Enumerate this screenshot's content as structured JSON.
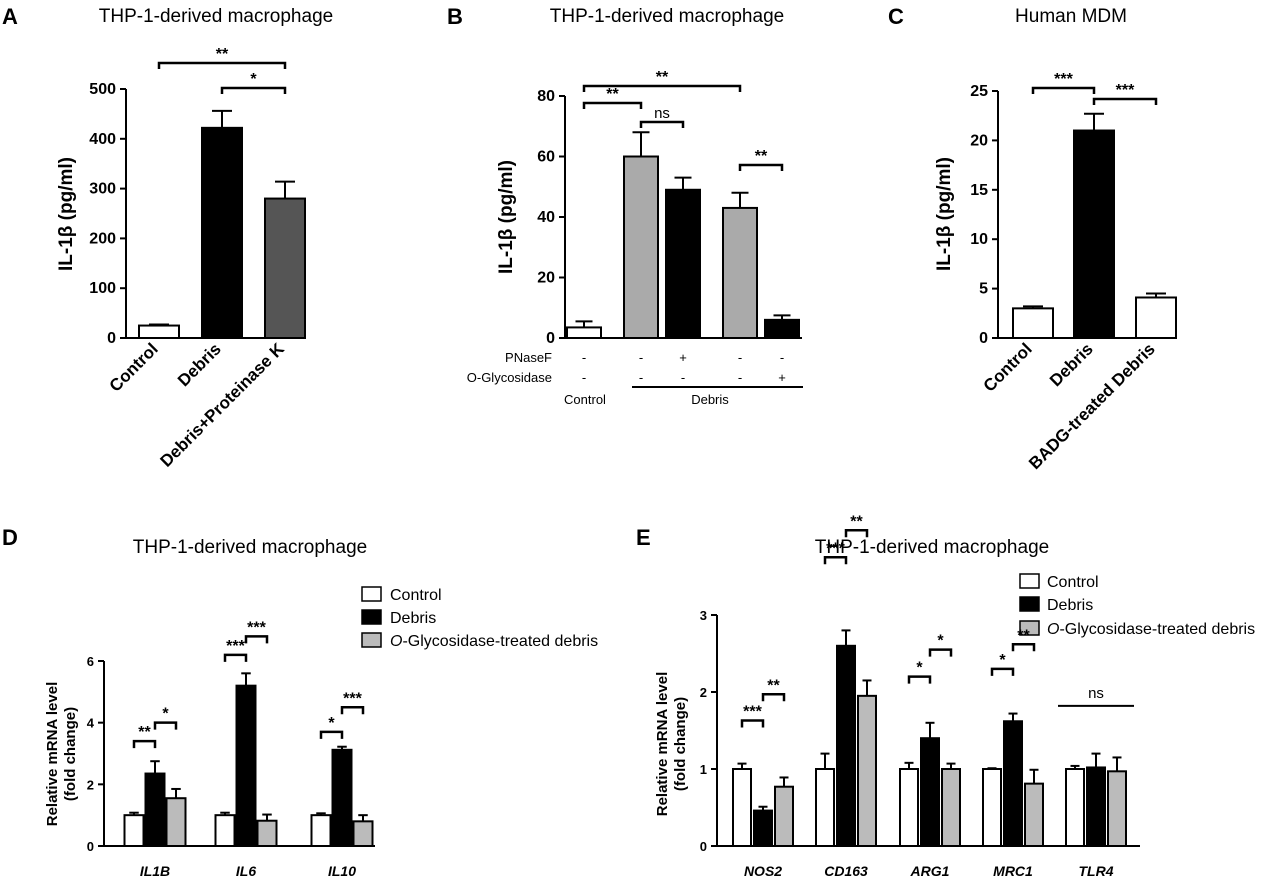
{
  "chart_data": [
    {
      "id": "A",
      "type": "bar",
      "panel_label": "A",
      "title": "THP-1-derived macrophage",
      "ylabel": "IL-1β (pg/ml)",
      "ylim": [
        0,
        500
      ],
      "yticks": [
        "0",
        "100",
        "200",
        "300",
        "400",
        "500"
      ],
      "categories": [
        "Control",
        "Debris",
        "Debris+Proteinase K"
      ],
      "values": [
        25,
        422,
        280
      ],
      "errors": [
        2,
        34,
        34
      ],
      "colors": [
        "#ffffff",
        "#000000",
        "#555555"
      ],
      "significance": [
        {
          "from": 0,
          "to": 2,
          "label": "**"
        },
        {
          "from": 1,
          "to": 2,
          "label": "*"
        }
      ]
    },
    {
      "id": "B",
      "type": "bar",
      "panel_label": "B",
      "title": "THP-1-derived macrophage",
      "ylabel": "IL-1β (pg/ml)",
      "ylim": [
        0,
        80
      ],
      "yticks": [
        "0",
        "20",
        "40",
        "60",
        "80"
      ],
      "values": [
        3.5,
        60,
        49,
        43,
        6
      ],
      "errors": [
        2,
        8,
        4,
        5,
        1.5
      ],
      "colors": [
        "#ffffff",
        "#aaaaaa",
        "#000000",
        "#aaaaaa",
        "#000000"
      ],
      "treatments": [
        {
          "name": "PNaseF",
          "marks": [
            "-",
            "-",
            "+",
            "-",
            "-"
          ]
        },
        {
          "name": "O-Glycosidase",
          "marks": [
            "-",
            "-",
            "-",
            "-",
            "+"
          ]
        }
      ],
      "group_labels": [
        "Control",
        "Debris"
      ],
      "significance": [
        {
          "from": 0,
          "to": 3,
          "label": "**"
        },
        {
          "from": 0,
          "to": 1,
          "label": "**"
        },
        {
          "from": 1,
          "to": 2,
          "label": "ns"
        },
        {
          "from": 3,
          "to": 4,
          "label": "**"
        }
      ]
    },
    {
      "id": "C",
      "type": "bar",
      "panel_label": "C",
      "title": "Human MDM",
      "ylabel": "IL-1β (pg/ml)",
      "ylim": [
        0,
        25
      ],
      "yticks": [
        "0",
        "5",
        "10",
        "15",
        "20",
        "25"
      ],
      "categories": [
        "Control",
        "Debris",
        "BADG-treated Debris"
      ],
      "values": [
        3.0,
        21.0,
        4.1
      ],
      "errors": [
        0.2,
        1.7,
        0.4
      ],
      "colors": [
        "#ffffff",
        "#000000",
        "#ffffff"
      ],
      "significance": [
        {
          "from": 0,
          "to": 1,
          "label": "***"
        },
        {
          "from": 1,
          "to": 2,
          "label": "***"
        }
      ]
    },
    {
      "id": "D",
      "type": "bar",
      "panel_label": "D",
      "title": "THP-1-derived macrophage",
      "ylabel_lines": [
        "Relative mRNA level",
        "(fold change)"
      ],
      "ylim": [
        0,
        6
      ],
      "yticks": [
        "0",
        "2",
        "4",
        "6"
      ],
      "categories": [
        "IL1B",
        "IL6",
        "IL10"
      ],
      "legend_prefix": [
        "",
        "",
        "O"
      ],
      "legend_rest": [
        "Control",
        "Debris",
        "-Glycosidase-treated debris"
      ],
      "series": [
        {
          "name": "Control",
          "values": [
            1.0,
            1.0,
            1.0
          ],
          "errors": [
            0.08,
            0.08,
            0.06
          ],
          "color": "#ffffff"
        },
        {
          "name": "Debris",
          "values": [
            2.35,
            5.2,
            3.12
          ],
          "errors": [
            0.4,
            0.4,
            0.1
          ],
          "color": "#000000"
        },
        {
          "name": "O-Glycosidase-treated debris",
          "values": [
            1.55,
            0.82,
            0.8
          ],
          "errors": [
            0.3,
            0.2,
            0.2
          ],
          "color": "#bbbbbb"
        }
      ],
      "significance": [
        {
          "cat": 0,
          "from": 0,
          "to": 1,
          "label": "**",
          "level": 3.4
        },
        {
          "cat": 0,
          "from": 1,
          "to": 2,
          "label": "*",
          "level": 4.0
        },
        {
          "cat": 1,
          "from": 0,
          "to": 1,
          "label": "***",
          "level": 6.2
        },
        {
          "cat": 1,
          "from": 1,
          "to": 2,
          "label": "***",
          "level": 6.8
        },
        {
          "cat": 2,
          "from": 0,
          "to": 1,
          "label": "*",
          "level": 3.7
        },
        {
          "cat": 2,
          "from": 1,
          "to": 2,
          "label": "***",
          "level": 4.5
        }
      ]
    },
    {
      "id": "E",
      "type": "bar",
      "panel_label": "E",
      "title": "THP-1-derived macrophage",
      "ylabel_lines": [
        "Relative mRNA level",
        "(fold change)"
      ],
      "ylim": [
        0,
        3
      ],
      "yticks": [
        "0",
        "1",
        "2",
        "3"
      ],
      "categories": [
        "NOS2",
        "CD163",
        "ARG1",
        "MRC1",
        "TLR4"
      ],
      "legend_prefix": [
        "",
        "",
        "O"
      ],
      "legend_rest": [
        "Control",
        "Debris",
        "-Glycosidase-treated debris"
      ],
      "series": [
        {
          "name": "Control",
          "values": [
            1.0,
            1.0,
            1.0,
            1.0,
            1.0
          ],
          "errors": [
            0.07,
            0.2,
            0.08,
            0.01,
            0.04
          ],
          "color": "#ffffff"
        },
        {
          "name": "Debris",
          "values": [
            0.46,
            2.6,
            1.4,
            1.62,
            1.02
          ],
          "errors": [
            0.05,
            0.2,
            0.2,
            0.1,
            0.18
          ],
          "color": "#000000"
        },
        {
          "name": "O-Glycosidase-treated debris",
          "values": [
            0.77,
            1.95,
            1.0,
            0.81,
            0.97
          ],
          "errors": [
            0.12,
            0.2,
            0.07,
            0.18,
            0.18
          ],
          "color": "#bbbbbb"
        }
      ],
      "significance": [
        {
          "cat": 0,
          "from": 0,
          "to": 1,
          "label": "***",
          "level": 1.63
        },
        {
          "cat": 0,
          "from": 1,
          "to": 2,
          "label": "**",
          "level": 1.97
        },
        {
          "cat": 1,
          "from": 0,
          "to": 1,
          "label": "***",
          "level": 3.75
        },
        {
          "cat": 1,
          "from": 1,
          "to": 2,
          "label": "**",
          "level": 4.1
        },
        {
          "cat": 2,
          "from": 0,
          "to": 1,
          "label": "*",
          "level": 2.2
        },
        {
          "cat": 2,
          "from": 1,
          "to": 2,
          "label": "*",
          "level": 2.55
        },
        {
          "cat": 3,
          "from": 0,
          "to": 1,
          "label": "*",
          "level": 2.3
        },
        {
          "cat": 3,
          "from": 1,
          "to": 2,
          "label": "**",
          "level": 2.62
        }
      ],
      "ns_group": {
        "cat": 4,
        "label": "ns",
        "level": 1.82
      }
    }
  ]
}
